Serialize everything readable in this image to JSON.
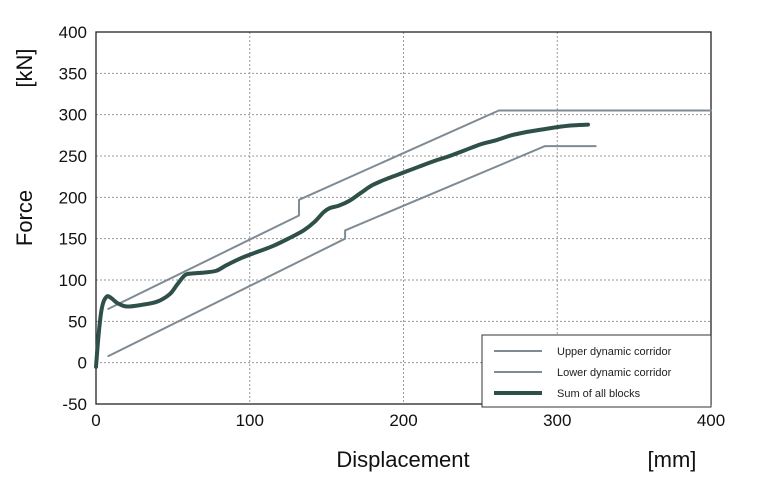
{
  "chart_data": {
    "type": "line",
    "xlabel": "Displacement",
    "xunit": "[mm]",
    "ylabel": "Force",
    "yunit": "[kN]",
    "xlim": [
      0,
      400
    ],
    "ylim": [
      -50,
      400
    ],
    "xticks": [
      0,
      100,
      200,
      300,
      400
    ],
    "yticks": [
      -50,
      0,
      50,
      100,
      150,
      200,
      250,
      300,
      350,
      400
    ],
    "grid": true,
    "legend_position": "bottom-right",
    "series": [
      {
        "name": "Upper dynamic corridor",
        "color": "#7f8b94",
        "width": 2,
        "x": [
          8,
          132,
          132,
          262,
          400
        ],
        "y": [
          65,
          178,
          197,
          305,
          305
        ]
      },
      {
        "name": "Lower dynamic corridor",
        "color": "#7f8b94",
        "width": 2,
        "x": [
          8,
          162,
          162,
          292,
          325
        ],
        "y": [
          8,
          150,
          160,
          262,
          262
        ]
      },
      {
        "name": "Sum of all blocks",
        "color": "#2f4f49",
        "width": 4,
        "x": [
          0,
          2,
          4,
          7,
          10,
          14,
          20,
          30,
          40,
          48,
          53,
          58,
          63,
          70,
          78,
          85,
          95,
          105,
          115,
          125,
          135,
          142,
          148,
          152,
          158,
          165,
          172,
          180,
          190,
          200,
          210,
          220,
          230,
          240,
          250,
          260,
          270,
          280,
          290,
          300,
          310,
          320
        ],
        "y": [
          -5,
          40,
          68,
          80,
          78,
          72,
          68,
          70,
          74,
          83,
          95,
          106,
          108,
          109,
          111,
          118,
          127,
          134,
          141,
          150,
          160,
          170,
          182,
          187,
          190,
          196,
          205,
          215,
          223,
          230,
          237,
          244,
          250,
          257,
          264,
          269,
          275,
          279,
          282,
          285,
          287,
          288
        ]
      }
    ]
  }
}
